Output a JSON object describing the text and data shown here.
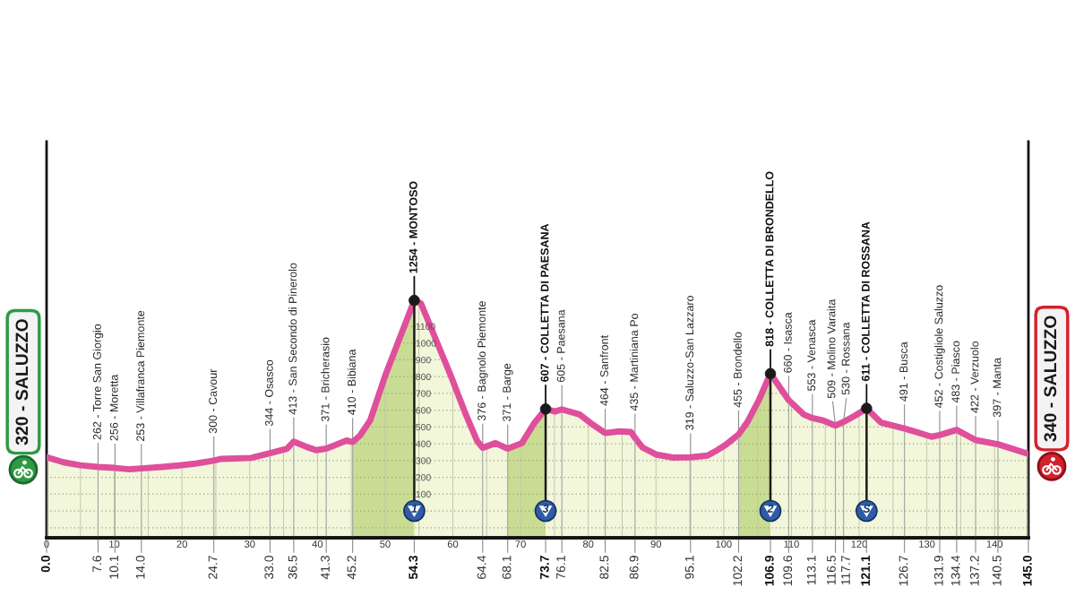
{
  "chart_data": {
    "type": "area",
    "xlim": [
      0,
      145
    ],
    "xticks": [
      0,
      {
        "value": 5,
        "label": null
      },
      10,
      {
        "value": 15,
        "label": null
      },
      20,
      {
        "value": 25,
        "label": null
      },
      30,
      {
        "value": 35,
        "label": null
      },
      40,
      {
        "value": 45,
        "label": null
      },
      50,
      {
        "value": 55,
        "label": null
      },
      60,
      {
        "value": 65,
        "label": null
      },
      70,
      {
        "value": 75,
        "label": null
      },
      80,
      {
        "value": 85,
        "label": null
      },
      90,
      {
        "value": 95,
        "label": null
      },
      100,
      {
        "value": 105,
        "label": null
      },
      110,
      {
        "value": 115,
        "label": null
      },
      120,
      {
        "value": 125,
        "label": null
      },
      130,
      {
        "value": 135,
        "label": null
      },
      140
    ],
    "ylim": [
      -160,
      2200
    ],
    "yticks": [
      {
        "value": -100,
        "label": null
      },
      {
        "value": 0,
        "label": null
      },
      100,
      200,
      300,
      400,
      500,
      600,
      700,
      800,
      900,
      1000,
      1100
    ],
    "x2lim": [
      0,
      145
    ],
    "x2ticks": [
      {
        "value": 0,
        "label": "0.0"
      },
      7.6,
      10.1,
      {
        "value": 14,
        "label": "14.0"
      },
      24.7,
      {
        "value": 33,
        "label": "33.0"
      },
      36.5,
      41.3,
      45.2,
      54.3,
      64.4,
      68.1,
      73.7,
      76.1,
      82.5,
      86.9,
      95.1,
      102.2,
      106.9,
      109.6,
      113.1,
      116.5,
      117.7,
      121.1,
      126.7,
      131.9,
      134.4,
      137.2,
      140.5,
      {
        "value": 145,
        "label": "145.0"
      }
    ],
    "grid": true,
    "series": [
      {
        "color": "#e5edb5",
        "x": [
          0,
          2.5,
          5,
          7.6,
          10.1,
          12.3,
          14.0,
          17,
          19.6,
          22,
          24.7,
          25.8,
          28,
          30.2,
          33.0,
          35.5,
          36.5,
          38.5,
          39.8,
          41.3,
          42.5,
          44.3,
          45.2,
          46.3,
          47.8,
          50,
          52.2,
          54.3,
          55.3,
          57.5,
          59.7,
          61.9,
          63.6,
          64.4,
          66.3,
          68.1,
          70.2,
          72,
          73.7,
          75.1,
          76.1,
          78.7,
          80.4,
          82.5,
          84.6,
          86.3,
          86.9,
          88,
          90.1,
          92.5,
          95.1,
          97.6,
          99,
          100.3,
          102.2,
          103.5,
          105.2,
          106.9,
          109.6,
          111.8,
          113.1,
          114.8,
          116.5,
          117.7,
          119.5,
          121.1,
          122,
          123.2,
          126.7,
          130.7,
          131.9,
          134.4,
          137.2,
          140.5,
          145
        ],
        "values": [
          320,
          290,
          272,
          262,
          256,
          248,
          253,
          262,
          271,
          282,
          300,
          310,
          313,
          316,
          344,
          370,
          413,
          380,
          362,
          371,
          390,
          420,
          410,
          450,
          540,
          805,
          1035,
          1254,
          1235,
          1020,
          805,
          576,
          416,
          376,
          404,
          371,
          404,
          522,
          607,
          592,
          605,
          575,
          522,
          464,
          474,
          470,
          435,
          378,
          335,
          318,
          319,
          330,
          361,
          394,
          455,
          530,
          661,
          818,
          660,
          575,
          553,
          537,
          509,
          530,
          570,
          611,
          575,
          527,
          491,
          442,
          452,
          483,
          422,
          397,
          340
        ]
      },
      {
        "type": "line",
        "color": "#df4f9c",
        "x": [
          0,
          2.5,
          5,
          7.6,
          10.1,
          12.3,
          14.0,
          17,
          19.6,
          22,
          24.7,
          25.8,
          28,
          30.2,
          33.0,
          35.5,
          36.5,
          38.5,
          39.8,
          41.3,
          42.5,
          44.3,
          45.2,
          46.3,
          47.8,
          50,
          52.2,
          54.3,
          55.3,
          57.5,
          59.7,
          61.9,
          63.6,
          64.4,
          66.3,
          68.1,
          70.2,
          72,
          73.7,
          75.1,
          76.1,
          78.7,
          80.4,
          82.5,
          84.6,
          86.3,
          86.9,
          88,
          90.1,
          92.5,
          95.1,
          97.6,
          99,
          100.3,
          102.2,
          103.5,
          105.2,
          106.9,
          109.6,
          111.8,
          113.1,
          114.8,
          116.5,
          117.7,
          119.5,
          121.1,
          122,
          123.2,
          126.7,
          130.7,
          131.9,
          134.4,
          137.2,
          140.5,
          145
        ],
        "values": [
          320,
          290,
          272,
          262,
          256,
          248,
          253,
          262,
          271,
          282,
          300,
          310,
          313,
          316,
          344,
          370,
          413,
          380,
          362,
          371,
          390,
          420,
          410,
          450,
          540,
          805,
          1035,
          1254,
          1235,
          1020,
          805,
          576,
          416,
          376,
          404,
          371,
          404,
          522,
          607,
          592,
          605,
          575,
          522,
          464,
          474,
          470,
          435,
          378,
          335,
          318,
          319,
          330,
          361,
          394,
          455,
          530,
          661,
          818,
          660,
          575,
          553,
          537,
          509,
          530,
          570,
          611,
          575,
          527,
          491,
          442,
          452,
          483,
          422,
          397,
          340
        ]
      },
      {
        "type": "lollipop",
        "color": "#1a1a1a",
        "marker": "circle",
        "x": [
          54.3,
          73.7,
          106.9,
          121.1
        ],
        "values": [
          1254,
          607,
          818,
          611
        ]
      }
    ],
    "bands": [
      {
        "axis": "y",
        "from": -160,
        "to": 0,
        "color": "#e5edb5"
      },
      {
        "axis": "x",
        "from": 45.2,
        "to": 54.3,
        "color": "#adcb71"
      },
      {
        "axis": "x",
        "from": 68.1,
        "to": 73.7,
        "color": "#adcb71"
      },
      {
        "axis": "x",
        "from": 102.2,
        "to": 106.9,
        "color": "#adcb71"
      }
    ],
    "annotations": [
      {
        "text": "320 - SALUZZO",
        "x": 0,
        "y": 320
      },
      {
        "text": "340 - SALUZZO",
        "x": 145,
        "y": 340
      },
      {
        "text": "262 - Torre San Giorgio",
        "x": 7.6,
        "y": 262
      },
      {
        "text": "256 - Moretta",
        "x": 10.1,
        "y": 256
      },
      {
        "text": "253 - Villafranca Piemonte",
        "x": 14.0,
        "y": 253
      },
      {
        "text": "300 - Cavour",
        "x": 24.7,
        "y": 300
      },
      {
        "text": "344 - Osasco",
        "x": 33.0,
        "y": 344
      },
      {
        "text": "413 - San Secondo di Pinerolo",
        "x": 36.5,
        "y": 413
      },
      {
        "text": "371 - Bricherasio",
        "x": 41.3,
        "y": 371
      },
      {
        "text": "410 - Bibiana",
        "x": 45.2,
        "y": 410
      },
      {
        "text": "1254 - MONTOSO",
        "x": 54.3,
        "y": 1254
      },
      {
        "text": "376 - Bagnolo Piemonte",
        "x": 64.4,
        "y": 376
      },
      {
        "text": "371 - Barge",
        "x": 68.1,
        "y": 371
      },
      {
        "text": "607 - COLLETTA DI PAESANA",
        "x": 73.7,
        "y": 607
      },
      {
        "text": "605 - Paesana",
        "x": 76.1,
        "y": 605
      },
      {
        "text": "464 - Sanfront",
        "x": 82.5,
        "y": 464
      },
      {
        "text": "435 - Martiniana Po",
        "x": 86.9,
        "y": 435
      },
      {
        "text": "319 - Saluzzo-San Lazzaro",
        "x": 95.1,
        "y": 319
      },
      {
        "text": "455 - Brondello",
        "x": 102.2,
        "y": 455
      },
      {
        "text": "818 - COLLETTA DI BRONDELLO",
        "x": 106.9,
        "y": 818
      },
      {
        "text": "660 - Isasca",
        "x": 109.6,
        "y": 660
      },
      {
        "text": "553 - Venasca",
        "x": 113.1,
        "y": 553
      },
      {
        "text": "509 - Molino Varaita",
        "x": 116.5,
        "y": 509
      },
      {
        "text": "530 - Rossana",
        "x": 117.7,
        "y": 530
      },
      {
        "text": "611 - COLLETTA DI ROSSANA",
        "x": 121.1,
        "y": 611
      },
      {
        "text": "491 - Busca",
        "x": 126.7,
        "y": 491
      },
      {
        "text": "452 - Costigliole Saluzzo",
        "x": 131.9,
        "y": 452
      },
      {
        "text": "483 - Piasco",
        "x": 134.4,
        "y": 483
      },
      {
        "text": "422 - Verzuolo",
        "x": 137.2,
        "y": 422
      },
      {
        "text": "397 - Manta",
        "x": 140.5,
        "y": 397
      },
      {
        "text": "1",
        "x": 54.3,
        "y": 0
      },
      {
        "text": "3",
        "x": 73.7,
        "y": 0
      },
      {
        "text": "2",
        "x": 106.9,
        "y": 0
      },
      {
        "text": "S",
        "x": 121.1,
        "y": 0
      }
    ]
  }
}
